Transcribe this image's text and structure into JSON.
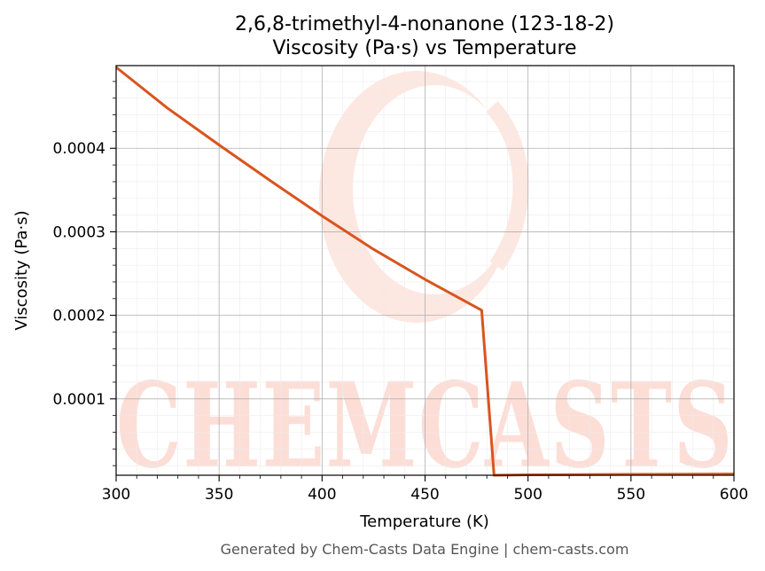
{
  "chart_data": {
    "type": "line",
    "title_line1": "2,6,8-trimethyl-4-nonanone (123-18-2)",
    "title_line2": "Viscosity (Pa·s) vs Temperature",
    "xlabel": "Temperature (K)",
    "ylabel": "Viscosity (Pa·s)",
    "xlim": [
      300,
      600
    ],
    "ylim": [
      8.5e-06,
      0.000499
    ],
    "xticks": [
      {
        "value": 300,
        "label": "300"
      },
      {
        "value": 350,
        "label": "350"
      },
      {
        "value": 400,
        "label": "400"
      },
      {
        "value": 450,
        "label": "450"
      },
      {
        "value": 500,
        "label": "500"
      },
      {
        "value": 550,
        "label": "550"
      },
      {
        "value": 600,
        "label": "600"
      }
    ],
    "yticks": [
      {
        "value": 0.0001,
        "label": "0.0001"
      },
      {
        "value": 0.0002,
        "label": "0.0002"
      },
      {
        "value": 0.0003,
        "label": "0.0003"
      },
      {
        "value": 0.0004,
        "label": "0.0004"
      }
    ],
    "grid": true,
    "series": [
      {
        "color": "#d9541e",
        "x": [
          300,
          325,
          350,
          375,
          400,
          425,
          450,
          477.5,
          483.5,
          500,
          550,
          600
        ],
        "y": [
          0.000497,
          0.000448,
          0.000404,
          0.000361,
          0.000319,
          0.000279,
          0.000243,
          0.000206,
          8.5e-06,
          9e-06,
          9.5e-06,
          1e-05
        ]
      }
    ]
  },
  "watermark": {
    "text": "CHEMCASTS",
    "color": "#fcd9d1"
  },
  "footer": {
    "text": "Generated by Chem-Casts Data Engine | chem-casts.com"
  }
}
